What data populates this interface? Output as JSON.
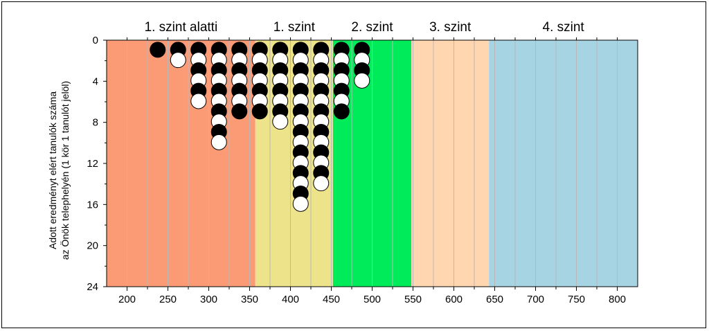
{
  "chart_data": {
    "type": "scatter",
    "title": "",
    "xlabel": "",
    "ylabel_line1": "Adott eredményt elért tanulók száma",
    "ylabel_line2": "az Önök telephelyén (1 kör 1 tanulót jelöl)",
    "xlim": [
      175,
      825
    ],
    "ylim": [
      0,
      24
    ],
    "y_inverted": true,
    "x_ticks": [
      200,
      250,
      300,
      350,
      400,
      450,
      500,
      550,
      600,
      650,
      700,
      750,
      800
    ],
    "y_ticks": [
      0,
      4,
      8,
      12,
      16,
      20,
      24
    ],
    "bands": [
      {
        "label": "1. szint alatti",
        "from": 175,
        "to": 357,
        "color": "#FA9B76"
      },
      {
        "label": "1. szint",
        "from": 357,
        "to": 452,
        "color": "#EDE38A"
      },
      {
        "label": "2. szint",
        "from": 452,
        "to": 548,
        "color": "#00EB5A"
      },
      {
        "label": "3. szint",
        "from": 548,
        "to": 643,
        "color": "#FFD6B0"
      },
      {
        "label": "4. szint",
        "from": 643,
        "to": 825,
        "color": "#A6D4E3"
      }
    ],
    "columns": [
      {
        "x": 237.5,
        "counts": [
          "b"
        ]
      },
      {
        "x": 262.5,
        "counts": [
          "b",
          "w"
        ]
      },
      {
        "x": 287.5,
        "counts": [
          "b",
          "w",
          "b",
          "w",
          "b",
          "w"
        ]
      },
      {
        "x": 312.5,
        "counts": [
          "b",
          "w",
          "b",
          "w",
          "b",
          "w",
          "b",
          "w",
          "b",
          "w"
        ]
      },
      {
        "x": 337.5,
        "counts": [
          "b",
          "w",
          "b",
          "w",
          "b",
          "w",
          "b"
        ]
      },
      {
        "x": 362.5,
        "counts": [
          "b",
          "w",
          "b",
          "w",
          "b",
          "w",
          "b"
        ]
      },
      {
        "x": 387.5,
        "counts": [
          "b",
          "w",
          "b",
          "w",
          "b",
          "w",
          "b",
          "w"
        ]
      },
      {
        "x": 412.5,
        "counts": [
          "b",
          "w",
          "b",
          "w",
          "b",
          "w",
          "b",
          "w",
          "b",
          "w",
          "b",
          "w",
          "b",
          "w",
          "b",
          "w"
        ]
      },
      {
        "x": 437.5,
        "counts": [
          "b",
          "w",
          "b",
          "w",
          "b",
          "w",
          "b",
          "w",
          "b",
          "w",
          "b",
          "w",
          "b",
          "w"
        ]
      },
      {
        "x": 462.5,
        "counts": [
          "b",
          "w",
          "b",
          "w",
          "b",
          "w",
          "b"
        ]
      },
      {
        "x": 487.5,
        "counts": [
          "b",
          "w",
          "b",
          "w"
        ]
      }
    ],
    "colors": {
      "black": "#000000",
      "white": "#ffffff",
      "grid": "#b8b8b8"
    }
  }
}
